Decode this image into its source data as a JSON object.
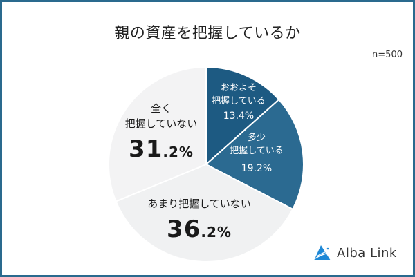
{
  "header": {
    "title": "親の資産を把握しているか",
    "sample_size": "n=500"
  },
  "slices": [
    {
      "label_line1": "おおよそ",
      "label_line2": "把握している",
      "value_text": "13.4%",
      "color": "#1d5a82"
    },
    {
      "label_line1": "多少",
      "label_line2": "把握している",
      "value_text": "19.2%",
      "color": "#2b6a91"
    },
    {
      "label_line1": "あまり把握していない",
      "value_int": "36",
      "value_dec": ".2%",
      "color": "#f0f1f2"
    },
    {
      "label_line1": "全く",
      "label_line2": "把握していない",
      "value_int": "31",
      "value_dec": ".2%",
      "color": "#f3f3f4"
    }
  ],
  "logo": {
    "icon": "alba-link-triangle-icon",
    "text": "Alba Link",
    "color": "#1e88d6"
  },
  "colors": {
    "frame": "#2a6a8e",
    "separator": "#ffffff"
  },
  "chart_data": {
    "type": "pie",
    "title": "親の資産を把握しているか",
    "subtitle": "n=500",
    "categories": [
      "おおよそ把握している",
      "多少把握している",
      "あまり把握していない",
      "全く把握していない"
    ],
    "values": [
      13.4,
      19.2,
      36.2,
      31.2
    ],
    "unit": "%",
    "start_angle": "12 o'clock",
    "direction": "clockwise",
    "colors": [
      "#1d5a82",
      "#2b6a91",
      "#f0f1f2",
      "#f3f3f4"
    ],
    "legend": "none (labels inside slices)"
  }
}
